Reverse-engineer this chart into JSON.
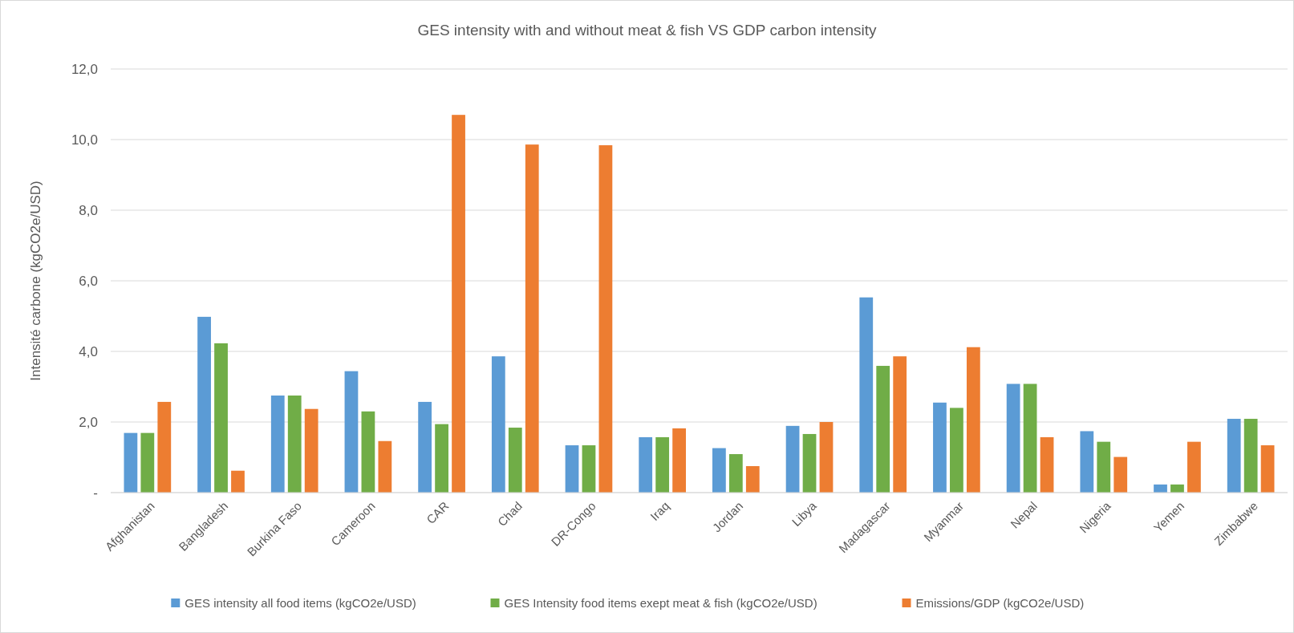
{
  "chart_data": {
    "type": "bar",
    "title": "GES intensity with and without meat & fish VS GDP carbon intensity",
    "ylabel": "Intensité carbone (kgCO2e/USD)",
    "categories": [
      "Afghanistan",
      "Bangladesh",
      "Burkina Faso",
      "Cameroon",
      "CAR",
      "Chad",
      "DR-Congo",
      "Iraq",
      "Jordan",
      "Libya",
      "Madagascar",
      "Myanmar",
      "Nepal",
      "Nigeria",
      "Yemen",
      "Zimbabwe"
    ],
    "series": [
      {
        "name": "GES intensity all food items (kgCO2e/USD)",
        "color": "#5b9bd5",
        "values": [
          1.69,
          4.98,
          2.75,
          3.44,
          2.57,
          3.86,
          1.34,
          1.57,
          1.26,
          1.89,
          5.53,
          2.55,
          3.08,
          1.74,
          0.23,
          2.09
        ]
      },
      {
        "name": "GES Intensity food items exept meat & fish (kgCO2e/USD)",
        "color": "#70ad47",
        "values": [
          1.69,
          4.23,
          2.75,
          2.3,
          1.94,
          1.84,
          1.34,
          1.57,
          1.09,
          1.66,
          3.59,
          2.4,
          3.08,
          1.44,
          0.23,
          2.09
        ]
      },
      {
        "name": "Emissions/GDP (kgCO2e/USD)",
        "color": "#ed7d31",
        "values": [
          2.57,
          0.62,
          2.37,
          1.46,
          10.7,
          9.86,
          9.84,
          1.82,
          0.75,
          2.0,
          3.86,
          4.12,
          1.57,
          1.01,
          1.44,
          1.34
        ]
      }
    ],
    "ylim": [
      0,
      12
    ],
    "yticks": [
      {
        "value": 0,
        "label": "-"
      },
      {
        "value": 2,
        "label": "2,0"
      },
      {
        "value": 4,
        "label": "4,0"
      },
      {
        "value": 6,
        "label": "6,0"
      },
      {
        "value": 8,
        "label": "8,0"
      },
      {
        "value": 10,
        "label": "10,0"
      },
      {
        "value": 12,
        "label": "12,0"
      }
    ],
    "grid": "y",
    "legend": "bottom"
  }
}
